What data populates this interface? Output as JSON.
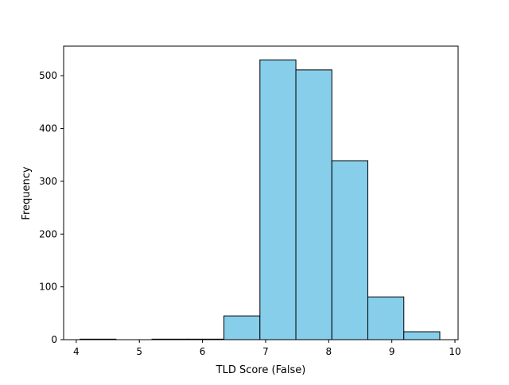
{
  "chart_data": {
    "type": "bar",
    "title": "",
    "xlabel": "TLD Score (False)",
    "ylabel": "Frequency",
    "xlim": [
      3.8,
      10.05
    ],
    "ylim": [
      0,
      556
    ],
    "xticks": [
      4,
      5,
      6,
      7,
      8,
      9,
      10
    ],
    "yticks": [
      0,
      100,
      200,
      300,
      400,
      500
    ],
    "bar_color": "#87CEEB",
    "edge_color": "#000000",
    "bins": [
      {
        "x0": 4.06,
        "x1": 4.63,
        "value": 1
      },
      {
        "x0": 4.63,
        "x1": 5.2,
        "value": 0
      },
      {
        "x0": 5.2,
        "x1": 5.77,
        "value": 1
      },
      {
        "x0": 5.77,
        "x1": 6.34,
        "value": 1
      },
      {
        "x0": 6.34,
        "x1": 6.91,
        "value": 45
      },
      {
        "x0": 6.91,
        "x1": 7.48,
        "value": 530
      },
      {
        "x0": 7.48,
        "x1": 8.05,
        "value": 511
      },
      {
        "x0": 8.05,
        "x1": 8.62,
        "value": 339
      },
      {
        "x0": 8.62,
        "x1": 9.19,
        "value": 81
      },
      {
        "x0": 9.19,
        "x1": 9.76,
        "value": 15
      }
    ]
  }
}
